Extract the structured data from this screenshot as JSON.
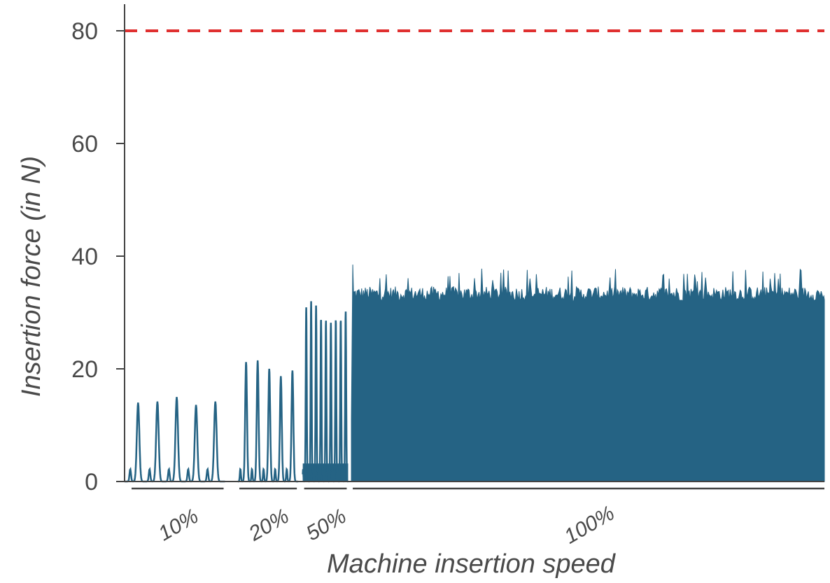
{
  "chart_data": {
    "type": "line",
    "xlabel": "Machine insertion speed",
    "ylabel": "Insertion force (in N)",
    "ylim": [
      0,
      85
    ],
    "yticks": [
      0,
      20,
      40,
      60,
      80
    ],
    "grid": false,
    "colors": {
      "series": "#256384",
      "threshold": "#e03030",
      "axis": "#444444",
      "text": "#4a4a4a"
    },
    "threshold": {
      "value": 80,
      "style": "dashed"
    },
    "groups": [
      {
        "label": "10%",
        "start": 0.0,
        "end": 15.5,
        "peak_values": [
          14.0,
          14.2,
          15.0,
          13.6,
          14.2
        ]
      },
      {
        "label": "20%",
        "start": 17.5,
        "end": 26.8,
        "peak_values": [
          21.2,
          21.5,
          20.0,
          18.7,
          19.7
        ]
      },
      {
        "label": "50%",
        "start": 27.5,
        "end": 34.5,
        "peak_values": [
          31.0,
          32.0,
          31.4,
          29.0,
          28.6,
          28.2,
          28.8,
          28.8,
          30.2
        ]
      },
      {
        "label": "100%",
        "start": 35.0,
        "end": 108.0,
        "level_range": [
          32,
          38.5
        ],
        "max_value": 38.5
      }
    ]
  }
}
